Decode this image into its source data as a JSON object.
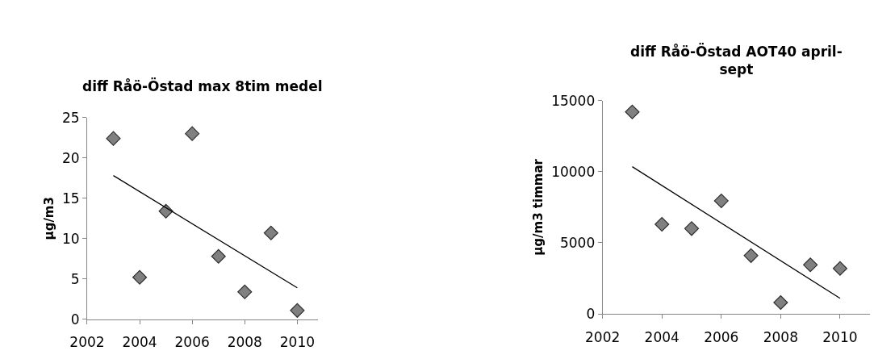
{
  "chart_data": [
    {
      "type": "scatter",
      "title": "diff Råö-Östad max 8tim medel",
      "ylabel": "µg/m3",
      "xlim": [
        2002,
        2010.8
      ],
      "xticks": [
        2002,
        2004,
        2006,
        2008,
        2010
      ],
      "ylim": [
        0,
        25
      ],
      "yticks": [
        0,
        5,
        10,
        15,
        20,
        25
      ],
      "series": [
        {
          "marker": "diamond",
          "color": "#808080",
          "x": [
            2003,
            2004,
            2005,
            2006,
            2007,
            2008,
            2009,
            2010
          ],
          "values": [
            22.4,
            5.2,
            13.4,
            23.0,
            7.8,
            3.4,
            10.7,
            1.1
          ]
        },
        {
          "type": "line",
          "marker": "none",
          "color": "#000000",
          "x": [
            2003,
            2010
          ],
          "values": [
            17.8,
            3.9
          ]
        }
      ]
    },
    {
      "type": "scatter",
      "title": "diff Råö-Östad AOT40 april-\nsept",
      "ylabel": "µg/m3 timmar",
      "xlim": [
        2002,
        2011
      ],
      "xticks": [
        2002,
        2004,
        2006,
        2008,
        2010
      ],
      "ylim": [
        0,
        15000
      ],
      "yticks": [
        0,
        5000,
        10000,
        15000
      ],
      "series": [
        {
          "marker": "diamond",
          "color": "#808080",
          "x": [
            2003,
            2004,
            2005,
            2006,
            2007,
            2008,
            2009,
            2010
          ],
          "values": [
            14200,
            6300,
            6000,
            7950,
            4100,
            800,
            3450,
            3200
          ]
        },
        {
          "type": "line",
          "marker": "none",
          "color": "#000000",
          "x": [
            2003,
            2010
          ],
          "values": [
            10350,
            1100
          ]
        }
      ]
    }
  ]
}
